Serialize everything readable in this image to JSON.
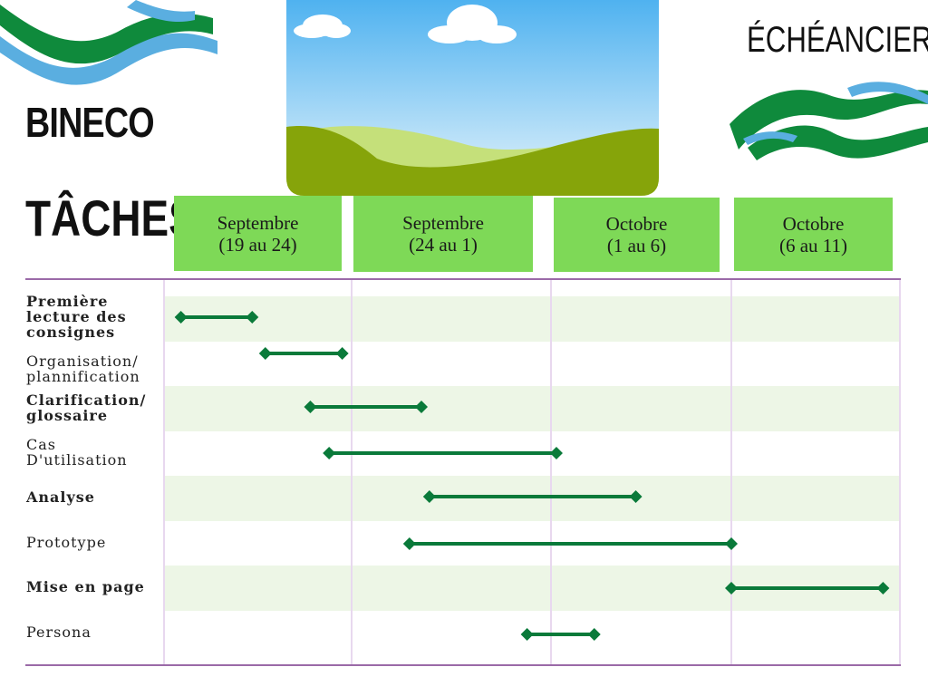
{
  "brand": "BINECO",
  "tasks_heading": "TÂCHES",
  "schedule_heading": "ÉCHÉANCIER",
  "colors": {
    "header_fill": "#7ed957",
    "bar": "#0a7a3a",
    "band": "#edf6e6",
    "grid_line": "#9b6aa8",
    "wave_green": "#0f8a3c",
    "wave_blue": "#5aaee0"
  },
  "icons": [
    "wave-decoration",
    "landscape-illustration",
    "diamond-marker"
  ],
  "chart_data": {
    "type": "gantt",
    "title": "ÉCHÉANCIER",
    "columns": [
      {
        "line1": "Septembre",
        "line2": "(19 au 24)"
      },
      {
        "line1": "Septembre",
        "line2": "(24 au 1)"
      },
      {
        "line1": "Octobre",
        "line2": "(1 au 6)"
      },
      {
        "line1": "Octobre",
        "line2": "(6 au 11)"
      }
    ],
    "x_unit": "week columns (0 = start of first column, 4 = end of last column)",
    "xlim": [
      0,
      4
    ],
    "tasks": [
      {
        "name": "Première lecture des consignes",
        "start": 0.09,
        "end": 0.47,
        "bold": true
      },
      {
        "name": "Organisation/ plannification",
        "start": 0.54,
        "end": 0.95,
        "bold": false
      },
      {
        "name": "Clarification/ glossaire",
        "start": 0.78,
        "end": 1.35,
        "bold": true
      },
      {
        "name": "Cas D'utilisation",
        "start": 0.88,
        "end": 2.03,
        "bold": false
      },
      {
        "name": "Analyse",
        "start": 1.39,
        "end": 2.47,
        "bold": true
      },
      {
        "name": "Prototype",
        "start": 1.29,
        "end": 3.0,
        "bold": false
      },
      {
        "name": "Mise en page",
        "start": 3.0,
        "end": 3.9,
        "bold": true
      },
      {
        "name": "Persona",
        "start": 1.88,
        "end": 2.24,
        "bold": false
      }
    ]
  }
}
